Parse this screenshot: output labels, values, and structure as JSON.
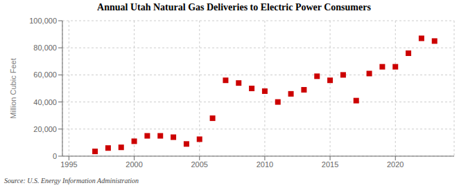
{
  "chart_data": {
    "type": "scatter",
    "title": "Annual Utah Natural Gas Deliveries to Electric Power Consumers",
    "ylabel": "Million Cubic Feet",
    "source": "Source: U.S. Energy Information Administration",
    "x": [
      1997,
      1998,
      1999,
      2000,
      2001,
      2002,
      2003,
      2004,
      2005,
      2006,
      2007,
      2008,
      2009,
      2010,
      2011,
      2012,
      2013,
      2014,
      2015,
      2016,
      2017,
      2018,
      2019,
      2020,
      2021,
      2022,
      2023
    ],
    "values": [
      3500,
      6000,
      6500,
      11000,
      15000,
      15000,
      14000,
      9000,
      12500,
      28000,
      56000,
      54000,
      50000,
      48000,
      40000,
      46000,
      49000,
      59000,
      56000,
      60000,
      41000,
      61000,
      66000,
      66000,
      76000,
      87000,
      85000
    ],
    "color": "#cc0000",
    "marker": "square",
    "xlim": [
      1994.5,
      2024.5
    ],
    "xticks": [
      1995,
      2000,
      2005,
      2010,
      2015,
      2020
    ],
    "ylim": [
      0,
      100000
    ],
    "yticks": [
      0,
      {
        "value": 20000,
        "label": "20,000"
      },
      {
        "value": 40000,
        "label": "40,000"
      },
      {
        "value": 60000,
        "label": "60,000"
      },
      {
        "value": 80000,
        "label": "80,000"
      },
      {
        "value": 100000,
        "label": "100,000"
      }
    ],
    "grid": true
  }
}
